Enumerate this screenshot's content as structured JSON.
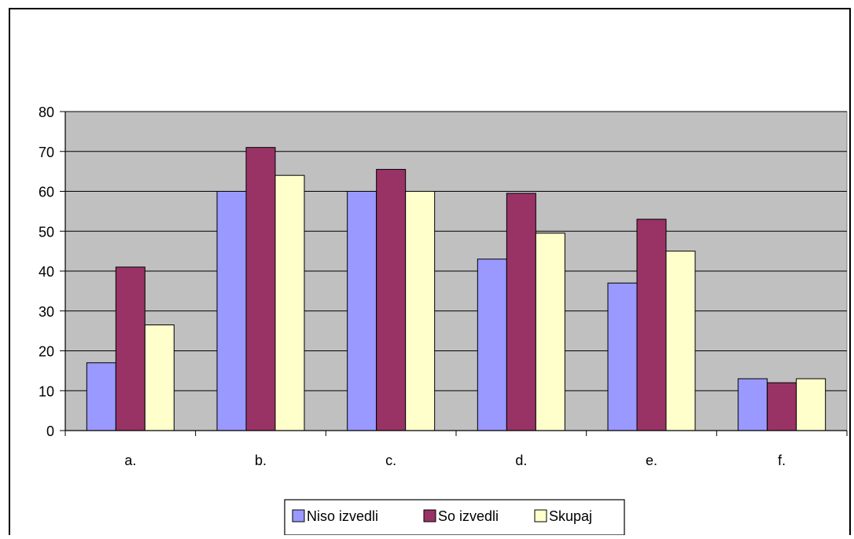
{
  "chart_data": {
    "type": "bar",
    "title": "",
    "xlabel": "",
    "ylabel": "",
    "categories": [
      "a.",
      "b.",
      "c.",
      "d.",
      "e.",
      "f."
    ],
    "series": [
      {
        "name": "Niso izvedli",
        "values": [
          17,
          60,
          60,
          43,
          37,
          13
        ],
        "color": "#9999ff"
      },
      {
        "name": "So izvedli",
        "values": [
          41,
          71,
          65.5,
          59.5,
          53,
          12
        ],
        "color": "#993366"
      },
      {
        "name": "Skupaj",
        "values": [
          26.5,
          64,
          60,
          49.5,
          45,
          13
        ],
        "color": "#ffffcc"
      }
    ],
    "ylim": [
      0,
      80
    ],
    "yticks": [
      "0",
      "10",
      "20",
      "30",
      "40",
      "50",
      "60",
      "70",
      "80"
    ],
    "grid": true,
    "plot_background": "#c0c0c0",
    "legend_position": "bottom-center"
  }
}
